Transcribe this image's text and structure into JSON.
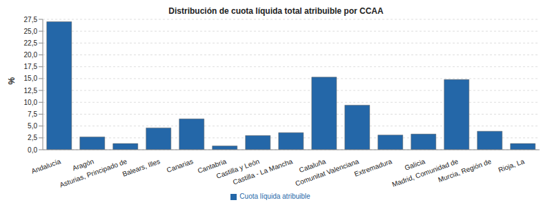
{
  "chart_data": {
    "type": "bar",
    "title": "Distribución de cuota líquida total atribuible por CCAA",
    "y_label": "%",
    "categories": [
      "Andalucía",
      "Aragón",
      "Asturias, Principado de",
      "Balears, Illes",
      "Canarias",
      "Cantabria",
      "Castilla y León",
      "Castilla - La Mancha",
      "Cataluña",
      "Comunitat Valenciana",
      "Extremadura",
      "Galicia",
      "Madrid, Comunidad de",
      "Murcia, Región de",
      "Rioja, La"
    ],
    "series": [
      {
        "name": "Cuota líquida atribuible",
        "color": "#2467a8",
        "values": [
          27.0,
          2.7,
          1.3,
          4.6,
          6.5,
          0.8,
          3.0,
          3.6,
          15.3,
          9.4,
          3.1,
          3.3,
          14.8,
          3.9,
          1.3
        ]
      }
    ],
    "ylim": [
      0,
      27.5
    ],
    "yticks": [
      {
        "value": 0,
        "label": "0,0"
      },
      {
        "value": 2.5,
        "label": "2,5"
      },
      {
        "value": 5,
        "label": "5,0"
      },
      {
        "value": 7.5,
        "label": "7,5"
      },
      {
        "value": 10,
        "label": "10,0"
      },
      {
        "value": 12.5,
        "label": "12,5"
      },
      {
        "value": 15,
        "label": "15,0"
      },
      {
        "value": 17.5,
        "label": "17,5"
      },
      {
        "value": 20,
        "label": "20,0"
      },
      {
        "value": 22.5,
        "label": "22,5"
      },
      {
        "value": 25,
        "label": "25,0"
      },
      {
        "value": 27.5,
        "label": "27,5"
      }
    ],
    "grid": true,
    "legend": "bottom"
  }
}
